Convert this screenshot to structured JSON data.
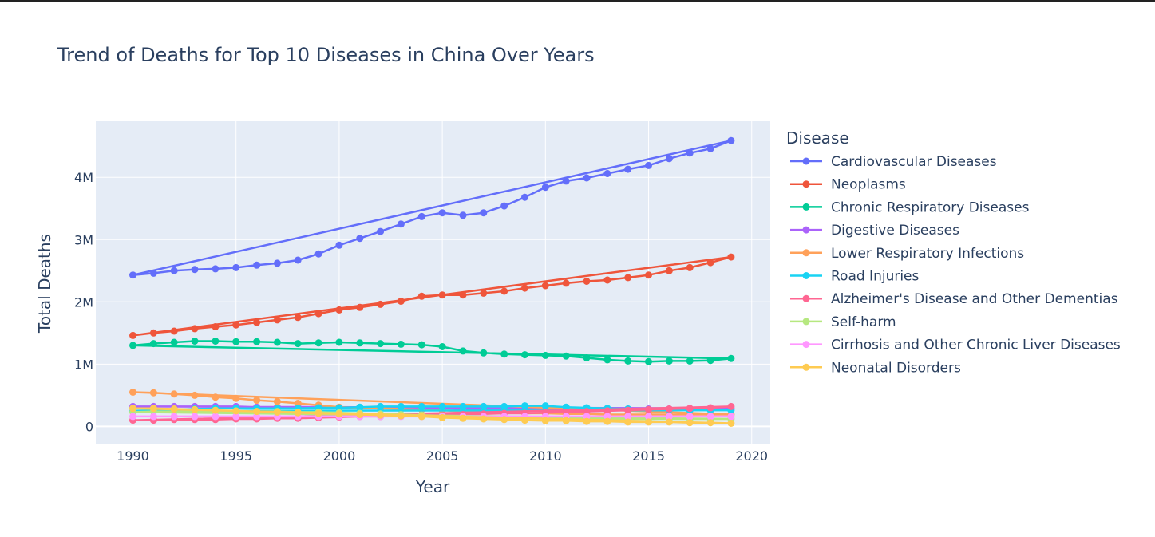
{
  "chart_data": {
    "type": "line",
    "title": "Trend of Deaths for Top 10 Diseases in China Over Years",
    "xlabel": "Year",
    "ylabel": "Total Deaths",
    "legend_title": "Disease",
    "legend_position": "right",
    "grid": true,
    "xlim": [
      1988.2,
      2020.9
    ],
    "ylim": [
      -290000,
      4900000
    ],
    "x_ticks": [
      1990,
      1995,
      2000,
      2005,
      2010,
      2015,
      2020
    ],
    "y_ticks": [
      0,
      1000000,
      2000000,
      3000000,
      4000000
    ],
    "y_tick_labels": [
      "0",
      "1M",
      "2M",
      "3M",
      "4M"
    ],
    "x": [
      1990,
      1991,
      1992,
      1993,
      1994,
      1995,
      1996,
      1997,
      1998,
      1999,
      2000,
      2001,
      2002,
      2003,
      2004,
      2005,
      2006,
      2007,
      2008,
      2009,
      2010,
      2011,
      2012,
      2013,
      2014,
      2015,
      2016,
      2017,
      2018,
      2019
    ],
    "series": [
      {
        "name": "Cardiovascular Diseases",
        "color": "#636efa",
        "values": [
          2430000,
          2460000,
          2500000,
          2520000,
          2530000,
          2550000,
          2590000,
          2620000,
          2670000,
          2770000,
          2910000,
          3020000,
          3130000,
          3250000,
          3370000,
          3430000,
          3390000,
          3430000,
          3540000,
          3680000,
          3840000,
          3940000,
          3990000,
          4060000,
          4130000,
          4190000,
          4300000,
          4390000,
          4460000,
          4590000
        ]
      },
      {
        "name": "Neoplasms",
        "color": "#ef553b",
        "values": [
          1460000,
          1500000,
          1530000,
          1570000,
          1600000,
          1630000,
          1670000,
          1710000,
          1750000,
          1810000,
          1870000,
          1910000,
          1960000,
          2010000,
          2090000,
          2110000,
          2110000,
          2140000,
          2170000,
          2220000,
          2260000,
          2300000,
          2330000,
          2350000,
          2390000,
          2430000,
          2500000,
          2550000,
          2630000,
          2720000
        ]
      },
      {
        "name": "Chronic Respiratory Diseases",
        "color": "#00cc96",
        "values": [
          1300000,
          1330000,
          1350000,
          1370000,
          1370000,
          1360000,
          1360000,
          1350000,
          1330000,
          1340000,
          1350000,
          1340000,
          1330000,
          1320000,
          1310000,
          1280000,
          1210000,
          1180000,
          1160000,
          1150000,
          1140000,
          1130000,
          1100000,
          1070000,
          1050000,
          1040000,
          1050000,
          1050000,
          1060000,
          1090000
        ]
      },
      {
        "name": "Digestive Diseases",
        "color": "#ab63fa",
        "values": [
          320000,
          320000,
          320000,
          320000,
          320000,
          320000,
          310000,
          310000,
          310000,
          300000,
          300000,
          300000,
          290000,
          290000,
          290000,
          290000,
          280000,
          280000,
          280000,
          280000,
          280000,
          280000,
          280000,
          280000,
          280000,
          280000,
          280000,
          280000,
          290000,
          290000
        ]
      },
      {
        "name": "Lower Respiratory Infections",
        "color": "#ffa15a",
        "values": [
          550000,
          540000,
          520000,
          500000,
          470000,
          450000,
          420000,
          400000,
          370000,
          340000,
          310000,
          300000,
          290000,
          280000,
          270000,
          260000,
          240000,
          230000,
          220000,
          210000,
          210000,
          200000,
          200000,
          190000,
          190000,
          190000,
          190000,
          190000,
          190000,
          190000
        ]
      },
      {
        "name": "Road Injuries",
        "color": "#19d3f3",
        "values": [
          250000,
          260000,
          270000,
          280000,
          290000,
          290000,
          290000,
          290000,
          290000,
          300000,
          300000,
          310000,
          320000,
          320000,
          320000,
          320000,
          320000,
          320000,
          320000,
          330000,
          330000,
          310000,
          300000,
          290000,
          280000,
          270000,
          270000,
          260000,
          260000,
          260000
        ]
      },
      {
        "name": "Alzheimer's Disease and Other Dementias",
        "color": "#ff6692",
        "values": [
          100000,
          100000,
          110000,
          110000,
          110000,
          120000,
          120000,
          130000,
          130000,
          140000,
          150000,
          160000,
          160000,
          170000,
          180000,
          180000,
          190000,
          200000,
          210000,
          210000,
          220000,
          230000,
          240000,
          250000,
          260000,
          270000,
          280000,
          290000,
          300000,
          320000
        ]
      },
      {
        "name": "Self-harm",
        "color": "#b6e880",
        "values": [
          230000,
          240000,
          240000,
          240000,
          240000,
          240000,
          240000,
          240000,
          230000,
          230000,
          220000,
          210000,
          200000,
          190000,
          180000,
          170000,
          160000,
          150000,
          140000,
          140000,
          130000,
          130000,
          120000,
          120000,
          120000,
          120000,
          120000,
          120000,
          120000,
          120000
        ]
      },
      {
        "name": "Cirrhosis and Other Chronic Liver Diseases",
        "color": "#ff97ff",
        "values": [
          160000,
          160000,
          160000,
          160000,
          160000,
          160000,
          160000,
          160000,
          160000,
          160000,
          160000,
          160000,
          160000,
          160000,
          160000,
          160000,
          160000,
          160000,
          160000,
          160000,
          160000,
          160000,
          160000,
          160000,
          160000,
          160000,
          160000,
          160000,
          160000,
          160000
        ]
      },
      {
        "name": "Neonatal Disorders",
        "color": "#fecb52",
        "values": [
          290000,
          290000,
          280000,
          270000,
          260000,
          250000,
          240000,
          230000,
          220000,
          210000,
          200000,
          190000,
          180000,
          170000,
          160000,
          140000,
          130000,
          120000,
          110000,
          100000,
          90000,
          90000,
          80000,
          80000,
          70000,
          70000,
          70000,
          60000,
          60000,
          50000
        ]
      }
    ]
  }
}
